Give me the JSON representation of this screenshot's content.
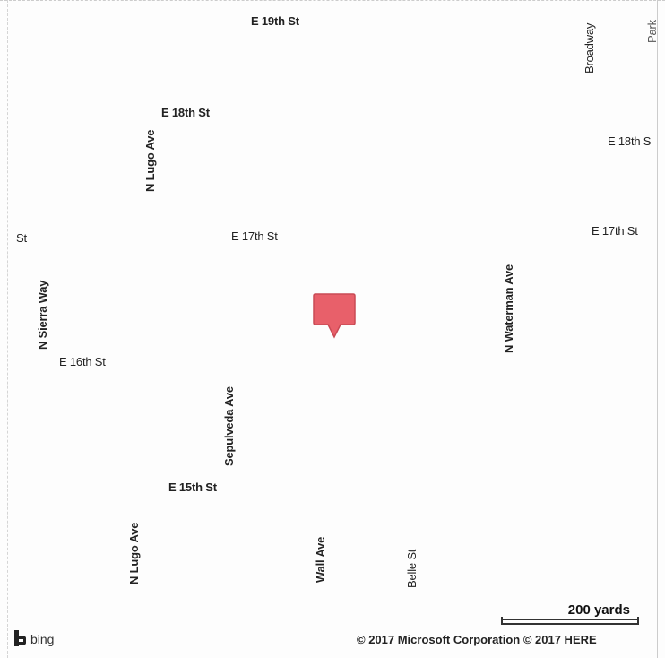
{
  "map": {
    "street_labels": {
      "e19th": "E 19th St",
      "e18th": "E 18th St",
      "e18th_right": "E 18th S",
      "e17th": "E 17th St",
      "e17th_right": "E 17th St",
      "st_left": "St",
      "e16th": "E 16th St",
      "e15th": "E 15th St",
      "n_lugo_top": "N Lugo Ave",
      "n_lugo_bottom": "N Lugo Ave",
      "n_sierra": "N Sierra Way",
      "sepulveda": "Sepulveda Ave",
      "n_waterman": "N Waterman Ave",
      "wall": "Wall Ave",
      "belle": "Belle St",
      "broadway": "Broadway",
      "park": "Park"
    },
    "scale_label": "200 yards",
    "copyright": "© 2017 Microsoft Corporation © 2017 HERE",
    "brand": "bing",
    "pin_color": "#e8606a"
  }
}
